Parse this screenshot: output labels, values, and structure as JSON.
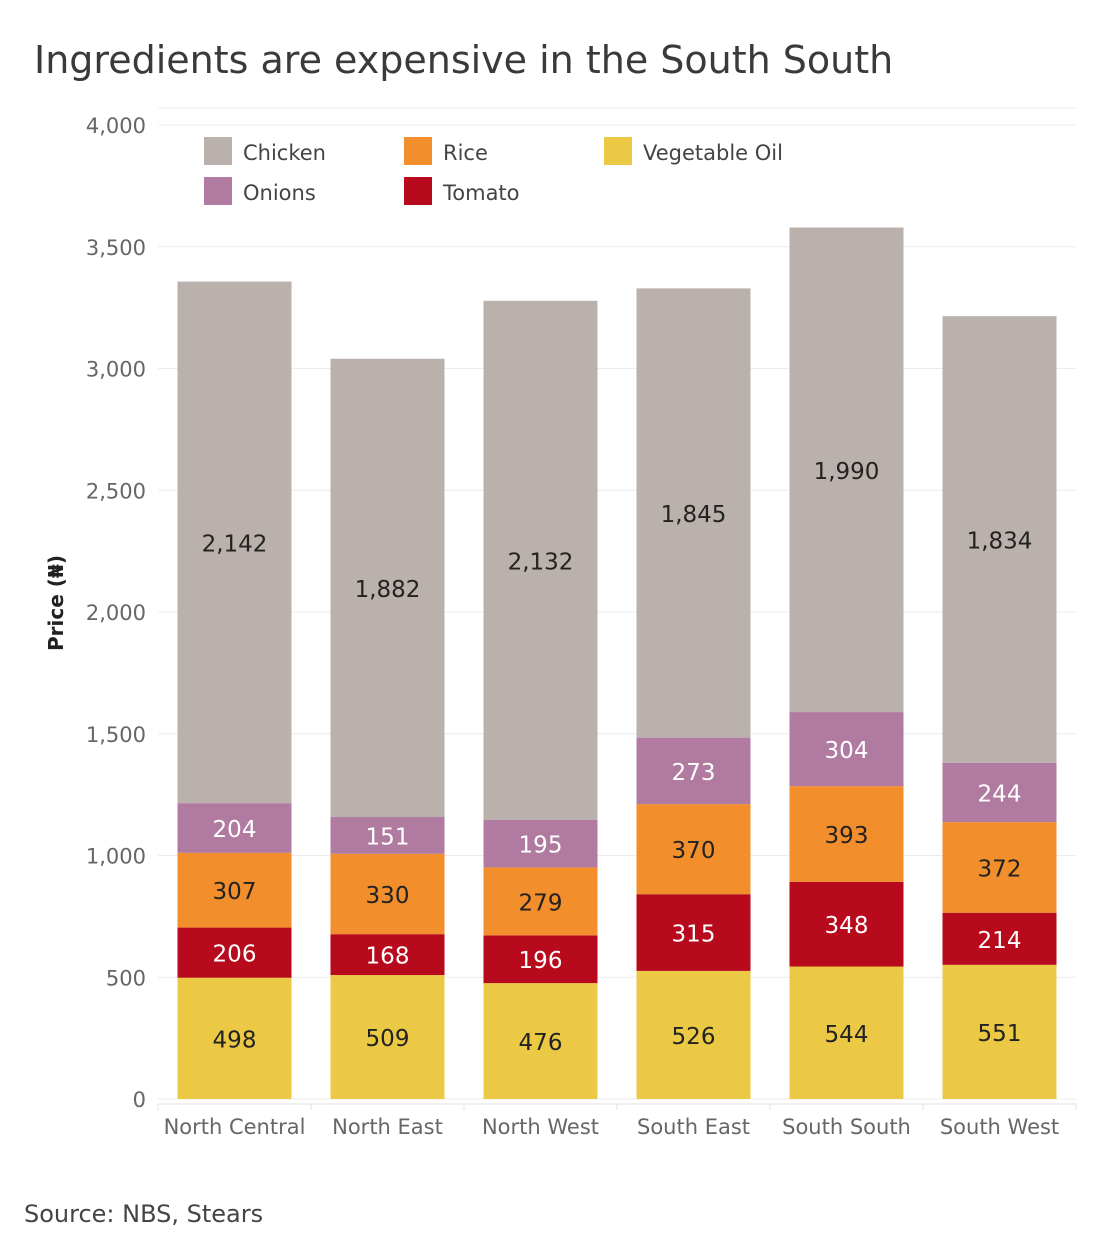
{
  "title": "Ingredients are expensive in the South South",
  "source": "Source: NBS, Stears",
  "chart_data": {
    "type": "bar",
    "stacked": true,
    "categories": [
      "North Central",
      "North East",
      "North West",
      "South East",
      "South South",
      "South West"
    ],
    "series": [
      {
        "name": "Vegetable Oil",
        "color": "#ebc944",
        "label_color": "#222222",
        "values": [
          498,
          509,
          476,
          526,
          544,
          551
        ]
      },
      {
        "name": "Tomato",
        "color": "#b80a1d",
        "label_color": "#ffffff",
        "values": [
          206,
          168,
          196,
          315,
          348,
          214
        ]
      },
      {
        "name": "Rice",
        "color": "#f28e2b",
        "label_color": "#222222",
        "values": [
          307,
          330,
          279,
          370,
          393,
          372
        ]
      },
      {
        "name": "Onions",
        "color": "#b07aa1",
        "label_color": "#ffffff",
        "values": [
          204,
          151,
          195,
          273,
          304,
          244
        ]
      },
      {
        "name": "Chicken",
        "color": "#bab0ac",
        "label_color": "#222222",
        "values": [
          2142,
          1882,
          2132,
          1845,
          1990,
          1834
        ]
      }
    ],
    "ylabel": "Price (₦)",
    "xlabel": "",
    "ylim": [
      0,
      4000
    ],
    "yticks": [
      0,
      500,
      1000,
      1500,
      2000,
      2500,
      3000,
      3500,
      4000
    ],
    "ytick_labels": [
      "0",
      "500",
      "1,000",
      "1,500",
      "2,000",
      "2,500",
      "3,000",
      "3,500",
      "4,000"
    ],
    "grid": true,
    "legend_position": "top-left",
    "legend_order": [
      "Chicken",
      "Rice",
      "Vegetable Oil",
      "Onions",
      "Tomato"
    ]
  }
}
